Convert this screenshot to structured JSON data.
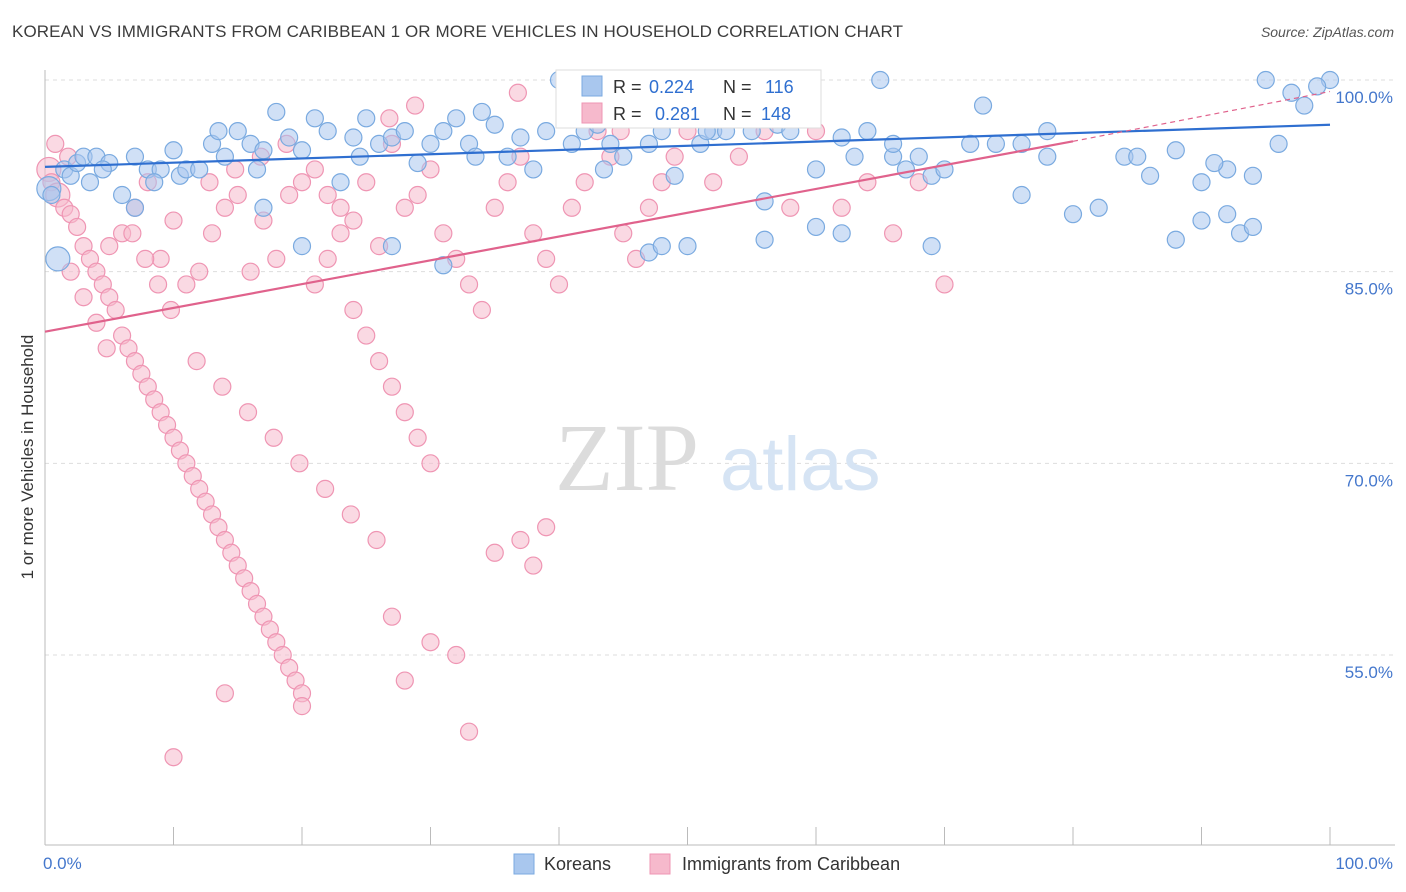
{
  "title": "KOREAN VS IMMIGRANTS FROM CARIBBEAN 1 OR MORE VEHICLES IN HOUSEHOLD CORRELATION CHART",
  "source": "Source: ZipAtlas.com",
  "watermark": {
    "zip": "ZIP",
    "atlas": "atlas"
  },
  "colors": {
    "blue_fill": "#a9c7ee",
    "blue_stroke": "#7aaae0",
    "blue_line": "#2f6fd0",
    "pink_fill": "#f6b9cc",
    "pink_stroke": "#ef95b3",
    "pink_line": "#e0628c",
    "axis_text": "#4477cc",
    "grid": "#dddddd"
  },
  "stats": {
    "blue": {
      "r_label": "R = ",
      "r_value": "0.224",
      "n_label": "N = ",
      "n_value": "116"
    },
    "pink": {
      "r_label": "R = ",
      "r_value": "0.281",
      "n_label": "N = ",
      "n_value": "148"
    }
  },
  "chart_data": {
    "type": "scatter",
    "title": "KOREAN VS IMMIGRANTS FROM CARIBBEAN 1 OR MORE VEHICLES IN HOUSEHOLD CORRELATION CHART",
    "xlabel": "",
    "ylabel": "1 or more Vehicles in Household",
    "xlim": [
      0,
      100
    ],
    "ylim": [
      42,
      101
    ],
    "x_tick_labels": {
      "min": "0.0%",
      "max": "100.0%"
    },
    "y_ticks": [
      {
        "value": 100,
        "label": "100.0%"
      },
      {
        "value": 85,
        "label": "85.0%"
      },
      {
        "value": 70,
        "label": "70.0%"
      },
      {
        "value": 55,
        "label": "55.0%"
      }
    ],
    "grid": true,
    "legend_position": "bottom",
    "series": [
      {
        "name": "Koreans",
        "color": "#a9c7ee",
        "trend": {
          "x0": 0,
          "y0": 93.2,
          "x1": 100,
          "y1": 96.5
        },
        "points": [
          [
            0.3,
            91.5
          ],
          [
            0.5,
            91
          ],
          [
            1,
            86
          ],
          [
            1.5,
            93
          ],
          [
            2,
            92.5
          ],
          [
            2.5,
            93.5
          ],
          [
            3,
            94
          ],
          [
            3.5,
            92
          ],
          [
            4,
            94
          ],
          [
            5,
            93.5
          ],
          [
            6,
            91
          ],
          [
            7,
            94
          ],
          [
            8,
            93
          ],
          [
            9,
            93
          ],
          [
            10,
            94.5
          ],
          [
            10.5,
            92.5
          ],
          [
            11,
            93
          ],
          [
            12,
            93
          ],
          [
            13,
            95
          ],
          [
            14,
            94
          ],
          [
            15,
            96
          ],
          [
            16,
            95
          ],
          [
            17,
            94.5
          ],
          [
            18,
            97.5
          ],
          [
            19,
            95.5
          ],
          [
            20,
            94.5
          ],
          [
            21,
            97
          ],
          [
            22,
            96
          ],
          [
            23,
            92
          ],
          [
            24,
            95.5
          ],
          [
            25,
            97
          ],
          [
            26,
            95
          ],
          [
            27,
            95.5
          ],
          [
            28,
            96
          ],
          [
            29,
            93.5
          ],
          [
            30,
            95
          ],
          [
            31,
            96
          ],
          [
            32,
            97
          ],
          [
            33,
            95
          ],
          [
            34,
            97.5
          ],
          [
            35,
            96.5
          ],
          [
            36,
            94
          ],
          [
            37,
            95.5
          ],
          [
            38,
            93
          ],
          [
            39,
            96
          ],
          [
            40,
            100
          ],
          [
            41,
            95
          ],
          [
            42,
            96
          ],
          [
            43,
            96.5
          ],
          [
            44,
            95
          ],
          [
            45,
            94
          ],
          [
            46,
            99
          ],
          [
            47,
            95
          ],
          [
            48,
            96
          ],
          [
            49,
            92.5
          ],
          [
            50,
            87
          ],
          [
            51,
            95
          ],
          [
            52,
            96
          ],
          [
            53,
            96
          ],
          [
            55,
            96
          ],
          [
            56,
            90.5
          ],
          [
            57,
            96.5
          ],
          [
            58,
            96
          ],
          [
            60,
            93
          ],
          [
            62,
            95.5
          ],
          [
            63,
            94
          ],
          [
            65,
            100
          ],
          [
            66,
            94
          ],
          [
            68,
            94
          ],
          [
            69,
            92.5
          ],
          [
            70,
            93
          ],
          [
            72,
            95
          ],
          [
            74,
            95
          ],
          [
            76,
            95
          ],
          [
            78,
            94
          ],
          [
            80,
            89.5
          ],
          [
            82,
            90
          ],
          [
            84,
            94
          ],
          [
            86,
            92.5
          ],
          [
            88,
            94.5
          ],
          [
            90,
            89
          ],
          [
            92,
            93
          ],
          [
            94,
            92.5
          ],
          [
            96,
            95
          ],
          [
            100,
            100
          ],
          [
            7,
            90
          ],
          [
            17,
            90
          ],
          [
            20,
            87
          ],
          [
            27,
            87
          ],
          [
            31,
            85.5
          ],
          [
            47,
            86.5
          ],
          [
            48,
            87
          ],
          [
            56,
            87.5
          ],
          [
            60,
            88.5
          ],
          [
            62,
            88
          ],
          [
            64,
            96
          ],
          [
            66,
            95
          ],
          [
            69,
            87
          ],
          [
            78,
            96
          ],
          [
            85,
            94
          ],
          [
            88,
            87.5
          ],
          [
            90,
            92
          ],
          [
            91,
            93.5
          ],
          [
            92,
            89.5
          ],
          [
            93,
            88
          ],
          [
            94,
            88.5
          ],
          [
            95,
            100
          ],
          [
            97,
            99
          ],
          [
            98,
            98
          ],
          [
            99,
            99.5
          ],
          [
            4.5,
            93
          ],
          [
            8.5,
            92
          ],
          [
            13.5,
            96
          ],
          [
            16.5,
            93
          ],
          [
            24.5,
            94
          ],
          [
            33.5,
            94
          ],
          [
            43.5,
            93
          ],
          [
            51.5,
            96
          ],
          [
            54.5,
            98
          ],
          [
            67,
            93
          ],
          [
            73,
            98
          ],
          [
            76,
            91
          ]
        ]
      },
      {
        "name": "Immigrants from Caribbean",
        "color": "#f6b9cc",
        "trend": {
          "x0": 0,
          "y0": 80.3,
          "x1": 80,
          "y1": 95.2
        },
        "trend_dashed": {
          "x0": 80,
          "y0": 95.2,
          "x1": 100,
          "y1": 99.1
        },
        "points": [
          [
            0.3,
            93
          ],
          [
            0.5,
            92
          ],
          [
            1,
            91
          ],
          [
            1.5,
            90
          ],
          [
            2,
            89.5
          ],
          [
            2.5,
            88.5
          ],
          [
            3,
            87
          ],
          [
            3.5,
            86
          ],
          [
            4,
            85
          ],
          [
            4.5,
            84
          ],
          [
            5,
            83
          ],
          [
            5.5,
            82
          ],
          [
            6,
            80
          ],
          [
            6.5,
            79
          ],
          [
            7,
            78
          ],
          [
            7.5,
            77
          ],
          [
            8,
            76
          ],
          [
            8.5,
            75
          ],
          [
            9,
            74
          ],
          [
            9.5,
            73
          ],
          [
            10,
            72
          ],
          [
            10.5,
            71
          ],
          [
            11,
            70
          ],
          [
            11.5,
            69
          ],
          [
            12,
            68
          ],
          [
            12.5,
            67
          ],
          [
            13,
            66
          ],
          [
            13.5,
            65
          ],
          [
            14,
            64
          ],
          [
            14.5,
            63
          ],
          [
            15,
            62
          ],
          [
            15.5,
            61
          ],
          [
            16,
            60
          ],
          [
            16.5,
            59
          ],
          [
            17,
            58
          ],
          [
            17.5,
            57
          ],
          [
            18,
            56
          ],
          [
            18.5,
            55
          ],
          [
            19,
            54
          ],
          [
            19.5,
            53
          ],
          [
            20,
            52
          ],
          [
            21,
            84
          ],
          [
            22,
            86
          ],
          [
            23,
            88
          ],
          [
            24,
            82
          ],
          [
            25,
            80
          ],
          [
            26,
            78
          ],
          [
            27,
            76
          ],
          [
            28,
            74
          ],
          [
            29,
            72
          ],
          [
            30,
            70
          ],
          [
            31,
            88
          ],
          [
            32,
            86
          ],
          [
            33,
            84
          ],
          [
            34,
            82
          ],
          [
            35,
            90
          ],
          [
            36,
            92
          ],
          [
            37,
            94
          ],
          [
            38,
            88
          ],
          [
            39,
            86
          ],
          [
            40,
            84
          ],
          [
            41,
            90
          ],
          [
            42,
            92
          ],
          [
            43,
            96
          ],
          [
            44,
            94
          ],
          [
            45,
            88
          ],
          [
            46,
            86
          ],
          [
            47,
            90
          ],
          [
            48,
            92
          ],
          [
            49,
            94
          ],
          [
            50,
            96
          ],
          [
            5,
            87
          ],
          [
            6,
            88
          ],
          [
            7,
            90
          ],
          [
            8,
            92
          ],
          [
            9,
            86
          ],
          [
            10,
            89
          ],
          [
            11,
            84
          ],
          [
            12,
            85
          ],
          [
            13,
            88
          ],
          [
            14,
            90
          ],
          [
            15,
            91
          ],
          [
            16,
            85
          ],
          [
            17,
            89
          ],
          [
            18,
            86
          ],
          [
            19,
            91
          ],
          [
            20,
            92
          ],
          [
            21,
            93
          ],
          [
            22,
            91
          ],
          [
            23,
            90
          ],
          [
            24,
            89
          ],
          [
            25,
            92
          ],
          [
            26,
            87
          ],
          [
            27,
            95
          ],
          [
            28,
            90
          ],
          [
            29,
            91
          ],
          [
            30,
            93
          ],
          [
            52,
            92
          ],
          [
            54,
            94
          ],
          [
            56,
            96
          ],
          [
            58,
            90
          ],
          [
            60,
            96
          ],
          [
            62,
            90
          ],
          [
            64,
            92
          ],
          [
            66,
            88
          ],
          [
            68,
            92
          ],
          [
            70,
            84
          ],
          [
            10,
            47
          ],
          [
            14,
            52
          ],
          [
            20,
            51
          ],
          [
            27,
            58
          ],
          [
            28,
            53
          ],
          [
            30,
            56
          ],
          [
            32,
            55
          ],
          [
            33,
            49
          ],
          [
            35,
            63
          ],
          [
            37,
            64
          ],
          [
            38,
            62
          ],
          [
            39,
            65
          ],
          [
            2,
            85
          ],
          [
            3,
            83
          ],
          [
            4,
            81
          ],
          [
            4.8,
            79
          ],
          [
            6.8,
            88
          ],
          [
            7.8,
            86
          ],
          [
            8.8,
            84
          ],
          [
            9.8,
            82
          ],
          [
            11.8,
            78
          ],
          [
            13.8,
            76
          ],
          [
            15.8,
            74
          ],
          [
            17.8,
            72
          ],
          [
            19.8,
            70
          ],
          [
            21.8,
            68
          ],
          [
            23.8,
            66
          ],
          [
            25.8,
            64
          ],
          [
            12.8,
            92
          ],
          [
            14.8,
            93
          ],
          [
            16.8,
            94
          ],
          [
            18.8,
            95
          ],
          [
            26.8,
            97
          ],
          [
            28.8,
            98
          ],
          [
            36.8,
            99
          ],
          [
            40.8,
            97
          ],
          [
            44.8,
            96
          ],
          [
            55,
            99
          ],
          [
            0.8,
            95
          ],
          [
            1.8,
            94
          ]
        ]
      }
    ]
  },
  "legend": {
    "koreans": "Koreans",
    "caribbean": "Immigrants from Caribbean"
  }
}
